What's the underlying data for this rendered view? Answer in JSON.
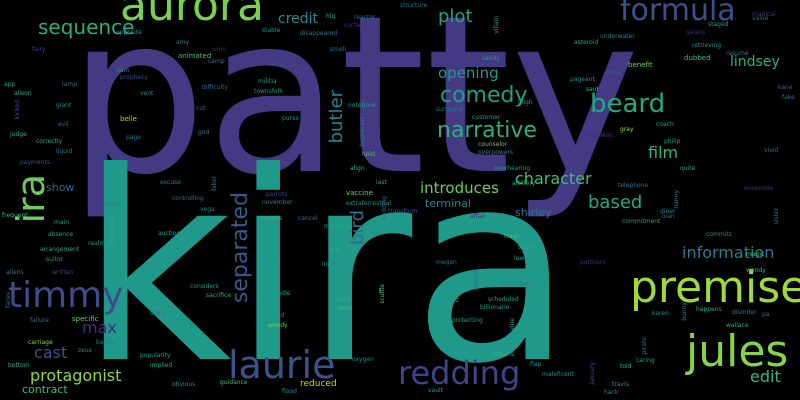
{
  "words": [
    {
      "text": "patty",
      "color": "#443983"
    },
    {
      "text": "kira",
      "color": "#1f9a8a"
    },
    {
      "text": "aurora",
      "color": "#7ad151"
    },
    {
      "text": "formula",
      "color": "#3b518b"
    },
    {
      "text": "premise",
      "color": "#a0da39"
    },
    {
      "text": "jules",
      "color": "#86d549"
    },
    {
      "text": "timmy",
      "color": "#3e4c8a"
    },
    {
      "text": "laurie",
      "color": "#3b528b"
    },
    {
      "text": "redding",
      "color": "#414487"
    },
    {
      "text": "ira",
      "color": "#6ccd5a"
    },
    {
      "text": "beard",
      "color": "#22a884"
    },
    {
      "text": "narrative",
      "color": "#2ab07f"
    },
    {
      "text": "comedy",
      "color": "#1f9e89"
    },
    {
      "text": "sequence",
      "color": "#27ad81"
    },
    {
      "text": "plot",
      "color": "#1fa187"
    },
    {
      "text": "credit",
      "color": "#238a8d"
    },
    {
      "text": "lindsey",
      "color": "#2ab07f"
    },
    {
      "text": "opening",
      "color": "#1f998a"
    },
    {
      "text": "butler",
      "color": "#26828e"
    },
    {
      "text": "separated",
      "color": "#38588c"
    },
    {
      "text": "film",
      "color": "#35b779"
    },
    {
      "text": "character",
      "color": "#40bd72"
    },
    {
      "text": "introduces",
      "color": "#6ece58"
    },
    {
      "text": "based",
      "color": "#22a884"
    },
    {
      "text": "information",
      "color": "#287c8e"
    },
    {
      "text": "bird",
      "color": "#2d708e"
    },
    {
      "text": "protagonist",
      "color": "#90d743"
    },
    {
      "text": "cast",
      "color": "#3b528b"
    },
    {
      "text": "max",
      "color": "#482878"
    },
    {
      "text": "edit",
      "color": "#35b779"
    },
    {
      "text": "show",
      "color": "#31688e"
    },
    {
      "text": "terminal",
      "color": "#25858e"
    },
    {
      "text": "shirley",
      "color": "#2c738e"
    },
    {
      "text": "contract",
      "color": "#3fbc73"
    },
    {
      "text": "reduced",
      "color": "#b8de29"
    },
    {
      "text": "structure",
      "color": "#2a768e"
    },
    {
      "text": "magical",
      "color": "#46327e"
    },
    {
      "text": "reactor",
      "color": "#2c728e"
    },
    {
      "text": "surface",
      "color": "#472d7b"
    },
    {
      "text": "staged",
      "color": "#1f998a"
    },
    {
      "text": "value",
      "color": "#31688e"
    },
    {
      "text": "galaxy",
      "color": "#482878"
    },
    {
      "text": "opposite",
      "color": "#21918c"
    },
    {
      "text": "disappeared",
      "color": "#2a788e"
    },
    {
      "text": "amy",
      "color": "#25838e"
    },
    {
      "text": "underwater",
      "color": "#26828e"
    },
    {
      "text": "retrieving",
      "color": "#20928c"
    },
    {
      "text": "asteroid",
      "color": "#20a386"
    },
    {
      "text": "resume",
      "color": "#2a768e"
    },
    {
      "text": "wine",
      "color": "#482173"
    },
    {
      "text": "smell",
      "color": "#2a788e"
    },
    {
      "text": "animated",
      "color": "#44bf70"
    },
    {
      "text": "benefit",
      "color": "#75d054"
    },
    {
      "text": "dubbed",
      "color": "#3fbc73"
    },
    {
      "text": "fairy",
      "color": "#433e85"
    },
    {
      "text": "sandy",
      "color": "#1e9c89"
    },
    {
      "text": "carrie",
      "color": "#3b528b"
    },
    {
      "text": "app",
      "color": "#23a983"
    },
    {
      "text": "lamp",
      "color": "#31688e"
    },
    {
      "text": "prophecy",
      "color": "#3e4989"
    },
    {
      "text": "militia",
      "color": "#1e9b8a"
    },
    {
      "text": "townsfolk",
      "color": "#1f968b"
    },
    {
      "text": "pageant",
      "color": "#21918c"
    },
    {
      "text": "duke",
      "color": "#375a8c"
    },
    {
      "text": "said",
      "color": "#2ab07f"
    },
    {
      "text": "alison",
      "color": "#25ac82"
    },
    {
      "text": "difficulty",
      "color": "#31688e"
    },
    {
      "text": "vent",
      "color": "#27808e"
    },
    {
      "text": "leigh",
      "color": "#1f9f88"
    },
    {
      "text": "giant",
      "color": "#228c8d"
    },
    {
      "text": "notebook",
      "color": "#1f998a"
    },
    {
      "text": "kane",
      "color": "#35608d"
    },
    {
      "text": "fake",
      "color": "#2d718e"
    },
    {
      "text": "kicked",
      "color": "#3e4989"
    },
    {
      "text": "belle",
      "color": "#a8db34"
    },
    {
      "text": "purse",
      "color": "#21918c"
    },
    {
      "text": "customer",
      "color": "#1f9e89"
    },
    {
      "text": "evil",
      "color": "#2f6b8e"
    },
    {
      "text": "liquid",
      "color": "#2a768e"
    },
    {
      "text": "correctly",
      "color": "#2ab07f"
    },
    {
      "text": "judge",
      "color": "#35b779"
    },
    {
      "text": "page",
      "color": "#2e6f8e"
    },
    {
      "text": "god",
      "color": "#2a768e"
    },
    {
      "text": "hold",
      "color": "#4ac16d"
    },
    {
      "text": "counselor",
      "color": "#6ece58"
    },
    {
      "text": "overpowers",
      "color": "#26828e"
    },
    {
      "text": "gray",
      "color": "#a2da37"
    },
    {
      "text": "coach",
      "color": "#22a884"
    },
    {
      "text": "philip",
      "color": "#1f9a8a"
    },
    {
      "text": "payments",
      "color": "#3b528b"
    },
    {
      "text": "broadcast",
      "color": "#2c738e"
    },
    {
      "text": "last",
      "color": "#1fa088"
    },
    {
      "text": "overhearing",
      "color": "#1f9e89"
    },
    {
      "text": "artillery",
      "color": "#2ab07f"
    },
    {
      "text": "telephone",
      "color": "#2d708e"
    },
    {
      "text": "quite",
      "color": "#1f9f88"
    },
    {
      "text": "nanny",
      "color": "#27808e"
    },
    {
      "text": "ensemble",
      "color": "#482878"
    },
    {
      "text": "excuse",
      "color": "#25838e"
    },
    {
      "text": "parrots",
      "color": "#433d84"
    },
    {
      "text": "november",
      "color": "#26828e"
    },
    {
      "text": "controlling",
      "color": "#2d718e"
    },
    {
      "text": "vaccine",
      "color": "#75d054"
    },
    {
      "text": "extraterrestrial",
      "color": "#21918c"
    },
    {
      "text": "transform",
      "color": "#38588c"
    },
    {
      "text": "diner",
      "color": "#25838e"
    },
    {
      "text": "frequent",
      "color": "#3fbc73"
    },
    {
      "text": "main",
      "color": "#22a884"
    },
    {
      "text": "absence",
      "color": "#20a486"
    },
    {
      "text": "creates",
      "color": "#35b779"
    },
    {
      "text": "cancel",
      "color": "#2f6c8e"
    },
    {
      "text": "madame",
      "color": "#22a884"
    },
    {
      "text": "tragic",
      "color": "#3fbc73"
    },
    {
      "text": "commitment",
      "color": "#1f9e89"
    },
    {
      "text": "commits",
      "color": "#20928c"
    },
    {
      "text": "auction",
      "color": "#1fa287"
    },
    {
      "text": "vega",
      "color": "#24878e"
    },
    {
      "text": "christmas",
      "color": "#26ad81"
    },
    {
      "text": "realm",
      "color": "#1f968b"
    },
    {
      "text": "arrangement",
      "color": "#1fa287"
    },
    {
      "text": "suitor",
      "color": "#1f9f88"
    },
    {
      "text": "bid",
      "color": "#2ab07f"
    },
    {
      "text": "innocent",
      "color": "#1f958b"
    },
    {
      "text": "lawman",
      "color": "#1f9f88"
    },
    {
      "text": "shard",
      "color": "#29af7f"
    },
    {
      "text": "carolina",
      "color": "#1e9b8a"
    },
    {
      "text": "magic",
      "color": "#44bf70"
    },
    {
      "text": "wendy",
      "color": "#46c06f"
    },
    {
      "text": "partners",
      "color": "#482878"
    },
    {
      "text": "written",
      "color": "#433e85"
    },
    {
      "text": "considers",
      "color": "#1f9f88"
    },
    {
      "text": "sacrifice",
      "color": "#2ab07f"
    },
    {
      "text": "handle",
      "color": "#21a685"
    },
    {
      "text": "cleared",
      "color": "#1f9a8a"
    },
    {
      "text": "woody",
      "color": "#6ece58"
    },
    {
      "text": "shaft",
      "color": "#2ab07f"
    },
    {
      "text": "third",
      "color": "#3fbc73"
    },
    {
      "text": "scuffle",
      "color": "#4ac16d"
    },
    {
      "text": "invoicing",
      "color": "#2c738e"
    },
    {
      "text": "scheduled",
      "color": "#1f9e89"
    },
    {
      "text": "billionaire",
      "color": "#1f9a8a"
    },
    {
      "text": "protecting",
      "color": "#1f9e89"
    },
    {
      "text": "happens",
      "color": "#2ab07f"
    },
    {
      "text": "disorder",
      "color": "#2c728e"
    },
    {
      "text": "karen",
      "color": "#21918c"
    },
    {
      "text": "wallace",
      "color": "#2ab07f"
    },
    {
      "text": "specific",
      "color": "#6ccd5a"
    },
    {
      "text": "failure",
      "color": "#2c738e"
    },
    {
      "text": "barney",
      "color": "#26828e"
    },
    {
      "text": "carriage",
      "color": "#84d44b"
    },
    {
      "text": "zeus",
      "color": "#21918c"
    },
    {
      "text": "bottom",
      "color": "#2ab07f"
    },
    {
      "text": "popularity",
      "color": "#1f9e89"
    },
    {
      "text": "implied",
      "color": "#27ad81"
    },
    {
      "text": "obtains",
      "color": "#2ab07f"
    },
    {
      "text": "flap",
      "color": "#20928c"
    },
    {
      "text": "told",
      "color": "#2ab07f"
    },
    {
      "text": "caring",
      "color": "#1f9e89"
    },
    {
      "text": "pirate",
      "color": "#2c738e"
    },
    {
      "text": "travis",
      "color": "#1f9a8a"
    },
    {
      "text": "hack",
      "color": "#25838e"
    },
    {
      "text": "obvious",
      "color": "#20928c"
    },
    {
      "text": "guidance",
      "color": "#3fbc73"
    },
    {
      "text": "flood",
      "color": "#25838e"
    },
    {
      "text": "oxygen",
      "color": "#20928c"
    },
    {
      "text": "vault",
      "color": "#1f9e89"
    },
    {
      "text": "maleficent",
      "color": "#21918c"
    },
    {
      "text": "january",
      "color": "#3b528b"
    },
    {
      "text": "story",
      "color": "#2c738e"
    },
    {
      "text": "mob",
      "color": "#1f968b"
    },
    {
      "text": "total",
      "color": "#1f968b"
    },
    {
      "text": "cut",
      "color": "#2d718e"
    },
    {
      "text": "align",
      "color": "#2ab07f"
    },
    {
      "text": "wedding",
      "color": "#2d718e"
    },
    {
      "text": "surround",
      "color": "#2a788e"
    },
    {
      "text": "dam",
      "color": "#26828e"
    },
    {
      "text": "camp",
      "color": "#2a788e"
    },
    {
      "text": "stable",
      "color": "#1f958b"
    },
    {
      "text": "villain",
      "color": "#1f9e89"
    },
    {
      "text": "bunny",
      "color": "#2c738e"
    },
    {
      "text": "mistaken",
      "color": "#482878"
    },
    {
      "text": "vivid",
      "color": "#2a788e"
    },
    {
      "text": "hlq",
      "color": "#2ab07f"
    },
    {
      "text": "sister",
      "color": "#2d718e"
    },
    {
      "text": "vine",
      "color": "#1f9e89"
    },
    {
      "text": "affair",
      "color": "#482878"
    },
    {
      "text": "ivan",
      "color": "#2a788e"
    },
    {
      "text": "debate",
      "color": "#2d718e"
    },
    {
      "text": "megan",
      "color": "#2c738e"
    },
    {
      "text": "nz",
      "color": "#1f9e89"
    },
    {
      "text": "biker",
      "color": "#2c738e"
    },
    {
      "text": "norm",
      "color": "#2a788e"
    },
    {
      "text": "aliens",
      "color": "#2a788e"
    },
    {
      "text": "faces",
      "color": "#2a788e"
    },
    {
      "text": "pa",
      "color": "#2c738e"
    }
  ]
}
